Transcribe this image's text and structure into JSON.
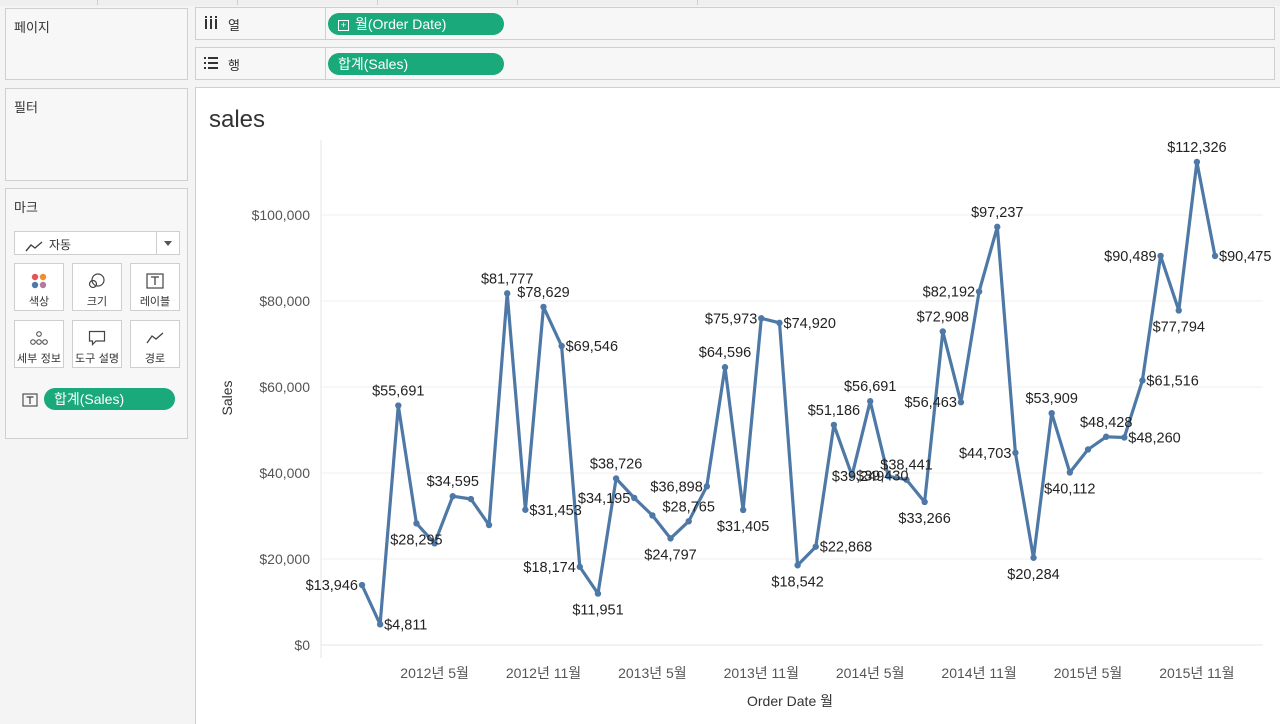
{
  "sidebar": {
    "pages_title": "페이지",
    "filters_title": "필터",
    "marks_title": "마크",
    "mark_type": "자동",
    "cards": [
      {
        "label": "색상",
        "icon": "color-icon"
      },
      {
        "label": "크기",
        "icon": "size-icon"
      },
      {
        "label": "레이블",
        "icon": "label-icon"
      },
      {
        "label": "세부 정보",
        "icon": "detail-icon"
      },
      {
        "label": "도구 설명",
        "icon": "tooltip-icon"
      },
      {
        "label": "경로",
        "icon": "path-icon"
      }
    ],
    "label_pill": "합계(Sales)"
  },
  "shelves": {
    "columns_label": "열",
    "columns_pill": "월(Order Date)",
    "rows_label": "행",
    "rows_pill": "합계(Sales)"
  },
  "chart_data": {
    "type": "line",
    "title": "sales",
    "xlabel": "Order Date 월",
    "ylabel": "Sales",
    "ylim": [
      0,
      115000
    ],
    "y_ticks": [
      "$0",
      "$20,000",
      "$40,000",
      "$60,000",
      "$80,000",
      "$100,000"
    ],
    "x_ticks": [
      "2012년 5월",
      "2012년 11월",
      "2013년 5월",
      "2013년 11월",
      "2014년 5월",
      "2014년 11월",
      "2015년 5월",
      "2015년 11월"
    ],
    "grid": true,
    "line_color": "#4e79a7",
    "x": [
      "2012-01",
      "2012-02",
      "2012-03",
      "2012-04",
      "2012-05",
      "2012-06",
      "2012-07",
      "2012-08",
      "2012-09",
      "2012-10",
      "2012-11",
      "2012-12",
      "2013-01",
      "2013-02",
      "2013-03",
      "2013-04",
      "2013-05",
      "2013-06",
      "2013-07",
      "2013-08",
      "2013-09",
      "2013-10",
      "2013-11",
      "2013-12",
      "2014-01",
      "2014-02",
      "2014-03",
      "2014-04",
      "2014-05",
      "2014-06",
      "2014-07",
      "2014-08",
      "2014-09",
      "2014-10",
      "2014-11",
      "2014-12",
      "2015-01",
      "2015-02",
      "2015-03",
      "2015-04",
      "2015-05",
      "2015-06",
      "2015-07",
      "2015-08",
      "2015-09",
      "2015-10",
      "2015-11",
      "2015-12"
    ],
    "values": [
      13946,
      4811,
      55691,
      28295,
      23648,
      34595,
      33946,
      27909,
      81777,
      31453,
      78629,
      69546,
      18174,
      11951,
      38726,
      34195,
      30131,
      24797,
      28765,
      36898,
      64596,
      31405,
      75973,
      74920,
      18542,
      22868,
      51186,
      39430,
      56691,
      39249,
      38441,
      33266,
      72908,
      56463,
      82192,
      97237,
      44703,
      20284,
      53909,
      40112,
      45470,
      48428,
      48260,
      61516,
      90489,
      77794,
      112326,
      90475
    ],
    "data_labels": [
      "$13,946",
      "$4,811",
      "$55,691",
      "$28,295",
      "",
      "$34,595",
      "",
      "",
      "$81,777",
      "$31,453",
      "$78,629",
      "$69,546",
      "$18,174",
      "$11,951",
      "$38,726",
      "$34,195",
      "",
      "$24,797",
      "$28,765",
      "$36,898",
      "$64,596",
      "$31,405",
      "$75,973",
      "$74,920",
      "$18,542",
      "$22,868",
      "$51,186",
      "$39,430",
      "$56,691",
      "$39,249",
      "$38,441",
      "$33,266",
      "$72,908",
      "$56,463",
      "$82,192",
      "$97,237",
      "$44,703",
      "$20,284",
      "$53,909",
      "$40,112",
      "",
      "$48,428",
      "$48,260",
      "$61,516",
      "$90,489",
      "$77,794",
      "$112,326",
      "$90,475"
    ]
  }
}
